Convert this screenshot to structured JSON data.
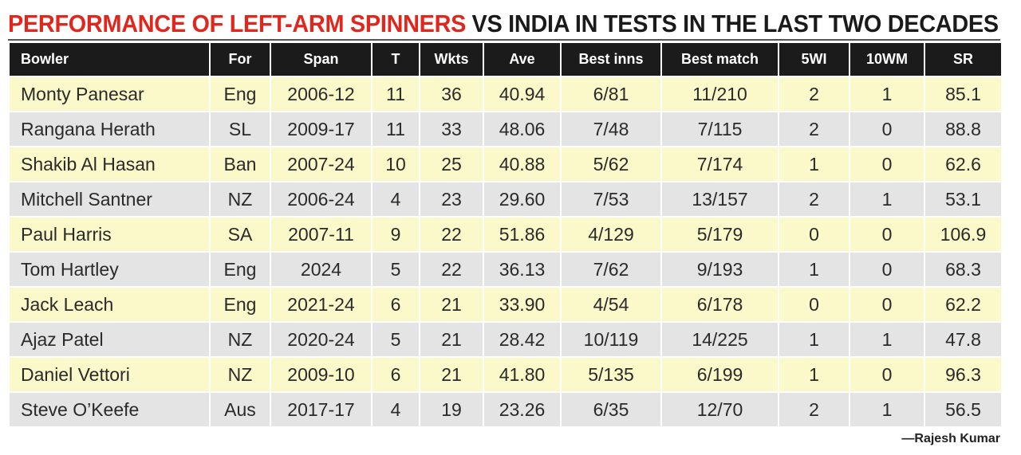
{
  "title": {
    "highlight": "PERFORMANCE OF LEFT-ARM SPINNERS",
    "rest": "VS INDIA IN TESTS IN THE LAST TWO DECADES"
  },
  "colors": {
    "title_red": "#e1261c",
    "header_bg": "#1b1b1b",
    "row_odd": "#fbf8c9",
    "row_even": "#e4e4e4"
  },
  "chart_data": {
    "type": "table",
    "title": "PERFORMANCE OF LEFT-ARM SPINNERS VS INDIA IN TESTS IN THE LAST TWO DECADES",
    "columns": [
      "Bowler",
      "For",
      "Span",
      "T",
      "Wkts",
      "Ave",
      "Best inns",
      "Best match",
      "5WI",
      "10WM",
      "SR"
    ],
    "rows": [
      [
        "Monty Panesar",
        "Eng",
        "2006-12",
        "11",
        "36",
        "40.94",
        "6/81",
        "11/210",
        "2",
        "1",
        "85.1"
      ],
      [
        "Rangana Herath",
        "SL",
        "2009-17",
        "11",
        "33",
        "48.06",
        "7/48",
        "7/115",
        "2",
        "0",
        "88.8"
      ],
      [
        "Shakib Al Hasan",
        "Ban",
        "2007-24",
        "10",
        "25",
        "40.88",
        "5/62",
        "7/174",
        "1",
        "0",
        "62.6"
      ],
      [
        "Mitchell Santner",
        "NZ",
        "2006-24",
        "4",
        "23",
        "29.60",
        "7/53",
        "13/157",
        "2",
        "1",
        "53.1"
      ],
      [
        "Paul Harris",
        "SA",
        "2007-11",
        "9",
        "22",
        "51.86",
        "4/129",
        "5/179",
        "0",
        "0",
        "106.9"
      ],
      [
        "Tom Hartley",
        "Eng",
        "2024",
        "5",
        "22",
        "36.13",
        "7/62",
        "9/193",
        "1",
        "0",
        "68.3"
      ],
      [
        "Jack Leach",
        "Eng",
        "2021-24",
        "6",
        "21",
        "33.90",
        "4/54",
        "6/178",
        "0",
        "0",
        "62.2"
      ],
      [
        "Ajaz Patel",
        "NZ",
        "2020-24",
        "5",
        "21",
        "28.42",
        "10/119",
        "14/225",
        "1",
        "1",
        "47.8"
      ],
      [
        "Daniel Vettori",
        "NZ",
        "2009-10",
        "6",
        "21",
        "41.80",
        "5/135",
        "6/199",
        "1",
        "0",
        "96.3"
      ],
      [
        "Steve O’Keefe",
        "Aus",
        "2017-17",
        "4",
        "19",
        "23.26",
        "6/35",
        "12/70",
        "2",
        "1",
        "56.5"
      ]
    ]
  },
  "credit": "—Rajesh Kumar"
}
